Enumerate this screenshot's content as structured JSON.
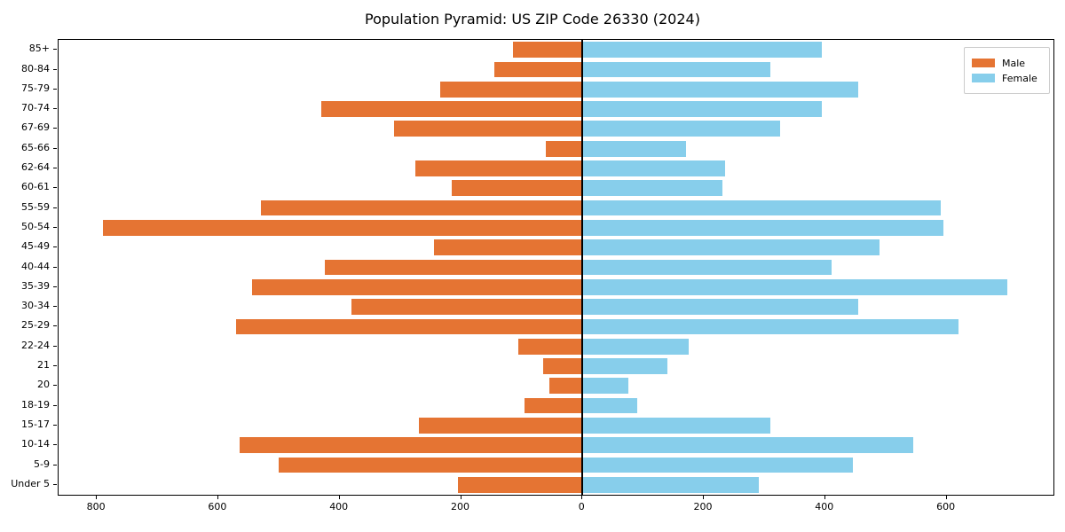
{
  "title": "Population Pyramid: US ZIP Code 26330 (2024)",
  "legend": {
    "male_label": "Male",
    "female_label": "Female"
  },
  "colors": {
    "male": "#E57433",
    "female": "#87CEEB",
    "spine": "#000000",
    "zero_line": "#000000",
    "legend_border": "#CCCCCC"
  },
  "chart_data": {
    "type": "bar",
    "subtype": "population-pyramid",
    "orientation": "horizontal",
    "title": "Population Pyramid: US ZIP Code 26330 (2024)",
    "categories": [
      "85+",
      "80-84",
      "75-79",
      "70-74",
      "67-69",
      "65-66",
      "62-64",
      "60-61",
      "55-59",
      "50-54",
      "45-49",
      "40-44",
      "35-39",
      "30-34",
      "25-29",
      "22-24",
      "21",
      "20",
      "18-19",
      "15-17",
      "10-14",
      "5-9",
      "Under 5"
    ],
    "series": [
      {
        "name": "Male",
        "side": "left",
        "color": "#E57433",
        "values": [
          115,
          145,
          235,
          430,
          310,
          60,
          275,
          215,
          530,
          790,
          245,
          425,
          545,
          380,
          570,
          105,
          65,
          55,
          95,
          270,
          565,
          500,
          205
        ]
      },
      {
        "name": "Female",
        "side": "right",
        "color": "#87CEEB",
        "values": [
          395,
          310,
          455,
          395,
          325,
          170,
          235,
          230,
          590,
          595,
          490,
          410,
          700,
          455,
          620,
          175,
          140,
          75,
          90,
          310,
          545,
          445,
          290
        ]
      }
    ],
    "x_tick_values": [
      -800,
      -600,
      -400,
      -200,
      0,
      200,
      400,
      600
    ],
    "x_tick_labels": [
      "800",
      "600",
      "400",
      "200",
      "0",
      "200",
      "400",
      "600"
    ],
    "xlim": [
      -863,
      776
    ],
    "bar_fraction": 0.8,
    "grid": false,
    "legend_position": "upper right",
    "zero_axis_line": true
  }
}
